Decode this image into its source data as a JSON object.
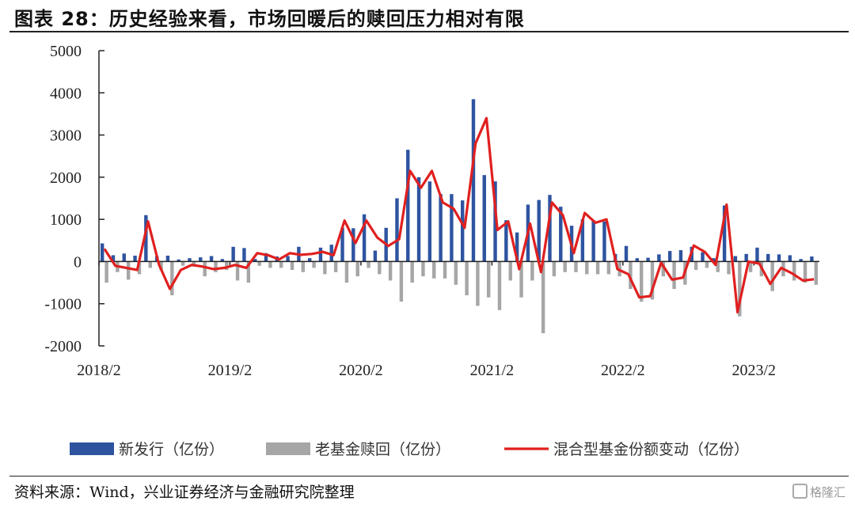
{
  "header": {
    "title": "图表 28：历史经验来看，市场回暖后的赎回压力相对有限"
  },
  "footer": {
    "source": "资料来源：Wind，兴业证券经济与金融研究院整理",
    "watermark": "格隆汇"
  },
  "colors": {
    "new_issue": "#2E54A0",
    "redemption": "#A6A6A6",
    "net_change": "#E0201F"
  },
  "chart_data": {
    "type": "bar",
    "title": "",
    "xlabel": "",
    "ylabel": "",
    "ylim": [
      -2000,
      5000
    ],
    "yticks": [
      5000,
      4000,
      3000,
      2000,
      1000,
      0,
      -1000,
      -2000
    ],
    "xtick_labels": [
      "2018/2",
      "2019/2",
      "2020/2",
      "2021/2",
      "2022/2",
      "2023/2"
    ],
    "xtick_index": [
      0,
      12,
      24,
      36,
      48,
      60
    ],
    "legend_position": "bottom",
    "grid": false,
    "series": [
      {
        "name": "新发行（亿份）",
        "type": "bar",
        "values": [
          430,
          150,
          190,
          140,
          1100,
          130,
          140,
          50,
          80,
          100,
          130,
          60,
          350,
          320,
          60,
          200,
          120,
          130,
          350,
          80,
          330,
          400,
          800,
          790,
          1120,
          260,
          800,
          1500,
          2650,
          2000,
          1900,
          1600,
          1600,
          1450,
          3850,
          2050,
          1900,
          980,
          690,
          1350,
          1460,
          1580,
          1300,
          850,
          1000,
          980,
          950,
          180,
          370,
          80,
          90,
          170,
          250,
          270,
          350,
          220,
          80,
          1330,
          130,
          180,
          330,
          180,
          170,
          150,
          60,
          120
        ]
      },
      {
        "name": "老基金赎回（亿份）",
        "type": "bar",
        "values": [
          -500,
          -250,
          -430,
          -300,
          -150,
          -200,
          -800,
          -100,
          -120,
          -350,
          -250,
          -200,
          -450,
          -500,
          -100,
          -150,
          -150,
          -200,
          -250,
          -150,
          -300,
          -250,
          -500,
          -350,
          -150,
          -300,
          -450,
          -950,
          -500,
          -350,
          -400,
          -400,
          -550,
          -800,
          -1050,
          -850,
          -1150,
          -450,
          -850,
          -450,
          -1700,
          -350,
          -250,
          -250,
          -300,
          -300,
          -300,
          -350,
          -650,
          -950,
          -900,
          -350,
          -650,
          -550,
          -200,
          -150,
          -250,
          -300,
          -1300,
          -250,
          -350,
          -700,
          -350,
          -450,
          -500,
          -550
        ]
      },
      {
        "name": "混合型基金份额变动（亿份）",
        "type": "line",
        "values": [
          300,
          -100,
          -150,
          -200,
          950,
          -70,
          -650,
          -200,
          -80,
          -120,
          -180,
          -150,
          -80,
          -150,
          200,
          150,
          50,
          200,
          160,
          180,
          230,
          150,
          970,
          440,
          970,
          570,
          370,
          530,
          2150,
          1750,
          2150,
          1400,
          1250,
          800,
          2800,
          3400,
          750,
          950,
          -180,
          900,
          -250,
          1400,
          1100,
          200,
          1150,
          920,
          1000,
          -180,
          -300,
          -850,
          -820,
          -30,
          -430,
          -380,
          380,
          230,
          -80,
          1350,
          -1200,
          0,
          -50,
          -530,
          -150,
          -280,
          -450,
          -420
        ]
      }
    ]
  }
}
